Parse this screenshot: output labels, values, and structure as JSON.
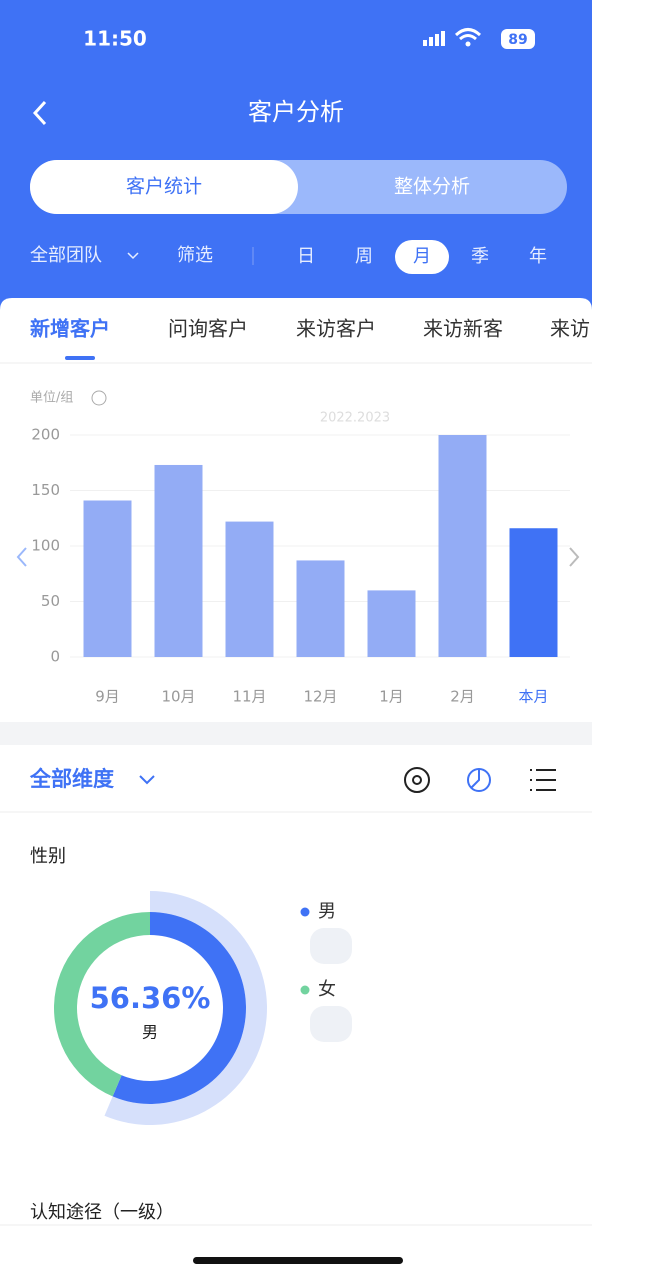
{
  "status_bar": {
    "time": "11:50",
    "battery": "89"
  },
  "header": {
    "title": "客户分析"
  },
  "segments": [
    "客户统计",
    "整体分析"
  ],
  "filters": {
    "team": "全部团队",
    "filter": "筛选",
    "periods": [
      "日",
      "周",
      "月",
      "季",
      "年"
    ]
  },
  "tabs": [
    "新增客户",
    "问询客户",
    "来访客户",
    "来访新客",
    "来访"
  ],
  "dimension": "全部维度",
  "sections": [
    "性别",
    "认知途径（一级）"
  ],
  "chart_data": [
    {
      "type": "bar",
      "unit_label": "单位/组",
      "subtitle": "2022.2023",
      "categories": [
        "9月",
        "10月",
        "11月",
        "12月",
        "1月",
        "2月",
        "本月"
      ],
      "values": [
        141,
        173,
        122,
        87,
        60,
        200,
        116
      ],
      "colors": [
        "#93acf5",
        "#93acf5",
        "#93acf5",
        "#93acf5",
        "#93acf5",
        "#93acf5",
        "#3f72f5"
      ],
      "label_colors": [
        "#999999",
        "#999999",
        "#999999",
        "#999999",
        "#999999",
        "#999999",
        "#3f72f5"
      ],
      "ylim": [
        0,
        200
      ],
      "yticks": [
        0,
        50,
        100,
        150,
        200
      ],
      "grid": true
    },
    {
      "type": "pie",
      "categories": [
        "男",
        "女"
      ],
      "values": [
        56.36,
        43.64
      ],
      "colors": [
        "#3f72f5",
        "#72d39f"
      ],
      "center_label": "56.36%"
    }
  ]
}
